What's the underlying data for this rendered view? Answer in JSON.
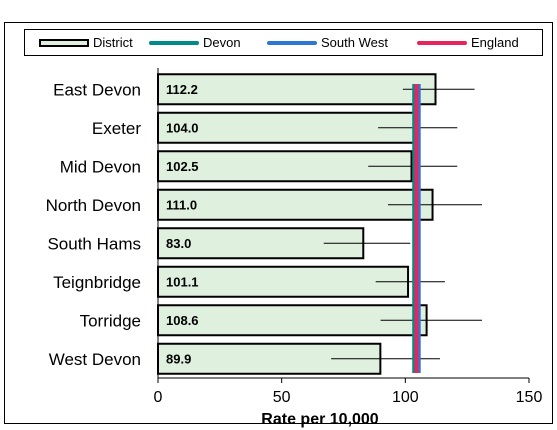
{
  "legend": {
    "district": "District",
    "devon": "Devon",
    "south_west": "South West",
    "england": "England"
  },
  "colors": {
    "district_fill": "#dff0df",
    "district_border": "#000000",
    "devon": "#008b8b",
    "south_west": "#2f75d6",
    "england": "#e8245c"
  },
  "chart_data": {
    "type": "bar",
    "orientation": "horizontal",
    "categories": [
      "East Devon",
      "Exeter",
      "Mid Devon",
      "North Devon",
      "South Hams",
      "Teignbridge",
      "Torridge",
      "West Devon"
    ],
    "values": [
      112.2,
      104.0,
      102.5,
      111.0,
      83.0,
      101.1,
      108.6,
      89.9
    ],
    "value_labels": [
      "112.2",
      "104.0",
      "102.5",
      "111.0",
      "83.0",
      "101.1",
      "108.6",
      "89.9"
    ],
    "error_low": [
      99,
      89,
      85,
      93,
      67,
      88,
      90,
      70
    ],
    "error_high": [
      128,
      121,
      121,
      131,
      102,
      116,
      131,
      114
    ],
    "reference_lines": [
      {
        "name": "Devon",
        "value": 104.0
      },
      {
        "name": "South West",
        "value": 105.0
      },
      {
        "name": "England",
        "value": 104.5
      }
    ],
    "xlim": [
      0,
      150
    ],
    "xticks": [
      "0",
      "50",
      "100",
      "150"
    ],
    "xtick_values": [
      0,
      50,
      100,
      150
    ],
    "xlabel": "Rate per 10,000",
    "legend_position": "top"
  }
}
